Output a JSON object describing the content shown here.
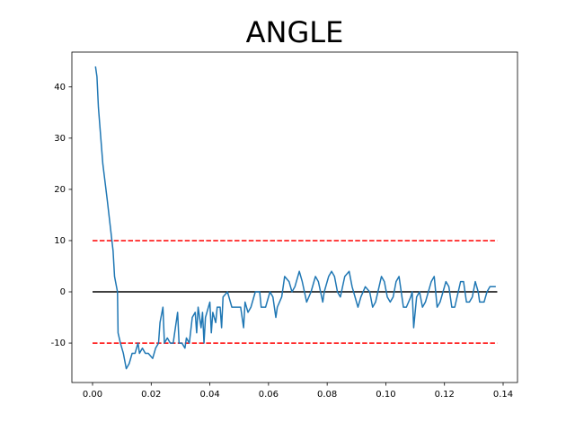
{
  "chart_data": {
    "type": "line",
    "title": "ANGLE",
    "color": "#1f77b4",
    "x": [
      0.001,
      0.0015,
      0.002,
      0.0035,
      0.005,
      0.006,
      0.007,
      0.0075,
      0.0085,
      0.0087,
      0.0095,
      0.0105,
      0.0115,
      0.0125,
      0.0135,
      0.0145,
      0.0155,
      0.016,
      0.017,
      0.018,
      0.019,
      0.0205,
      0.0215,
      0.0225,
      0.023,
      0.024,
      0.0245,
      0.0255,
      0.0265,
      0.0275,
      0.0285,
      0.029,
      0.0295,
      0.0305,
      0.0315,
      0.032,
      0.033,
      0.034,
      0.035,
      0.0355,
      0.036,
      0.037,
      0.0375,
      0.038,
      0.0385,
      0.039,
      0.04,
      0.0405,
      0.041,
      0.042,
      0.0425,
      0.0435,
      0.044,
      0.0445,
      0.046,
      0.0475,
      0.049,
      0.0505,
      0.0515,
      0.052,
      0.053,
      0.054,
      0.0555,
      0.057,
      0.0575,
      0.059,
      0.0605,
      0.0615,
      0.0625,
      0.063,
      0.0645,
      0.0655,
      0.067,
      0.068,
      0.069,
      0.0705,
      0.0715,
      0.073,
      0.0745,
      0.076,
      0.077,
      0.0785,
      0.079,
      0.0805,
      0.0815,
      0.0825,
      0.0835,
      0.0845,
      0.086,
      0.0875,
      0.0885,
      0.0905,
      0.0915,
      0.093,
      0.0945,
      0.0955,
      0.0965,
      0.0985,
      0.0995,
      0.1005,
      0.1015,
      0.1025,
      0.1035,
      0.1045,
      0.106,
      0.107,
      0.1085,
      0.109,
      0.1095,
      0.1105,
      0.1115,
      0.1125,
      0.1135,
      0.1155,
      0.1165,
      0.1175,
      0.1185,
      0.1195,
      0.1205,
      0.1215,
      0.1225,
      0.1235,
      0.1255,
      0.1265,
      0.1275,
      0.1285,
      0.1295,
      0.1305,
      0.1315,
      0.132,
      0.1335,
      0.1345,
      0.1355,
      0.1375
    ],
    "values": [
      44,
      42,
      36,
      25,
      18,
      13,
      8,
      3,
      0,
      -8,
      -10,
      -12,
      -15,
      -14,
      -12,
      -12,
      -10,
      -12,
      -11,
      -12,
      -12,
      -13,
      -11,
      -10,
      -6,
      -3,
      -10,
      -9,
      -10,
      -10,
      -6,
      -4,
      -10,
      -10,
      -11,
      -9,
      -10,
      -5,
      -4,
      -8,
      -3,
      -7,
      -4,
      -10,
      -5,
      -4,
      -2,
      -8,
      -4,
      -6,
      -3,
      -3,
      -7,
      -1,
      0,
      -3,
      -3,
      -3,
      -7,
      -2,
      -4,
      -3,
      0,
      0,
      -3,
      -3,
      0,
      -1,
      -5,
      -3,
      -1,
      3,
      2,
      0,
      1,
      4,
      2,
      -2,
      0,
      3,
      2,
      -2,
      0,
      3,
      4,
      3,
      0,
      -1,
      3,
      4,
      1,
      -3,
      -1,
      1,
      0,
      -3,
      -2,
      3,
      2,
      -1,
      -2,
      -1,
      2,
      3,
      -3,
      -3,
      -1,
      0,
      -7,
      -1,
      0,
      -3,
      -2,
      2,
      3,
      -3,
      -2,
      0,
      2,
      1,
      -3,
      -3,
      2,
      2,
      -2,
      -2,
      -1,
      2,
      0,
      -2,
      -2,
      0,
      1,
      1
    ],
    "hlines": [
      {
        "y": 0,
        "color": "#000000",
        "dashed": false,
        "x_range": [
          0,
          0.138
        ]
      },
      {
        "y": 10,
        "color": "#ff0000",
        "dashed": true,
        "x_range": [
          0,
          0.138
        ]
      },
      {
        "y": -10,
        "color": "#ff0000",
        "dashed": true,
        "x_range": [
          0,
          0.138
        ]
      }
    ],
    "xlim": [
      -0.00705,
      0.1449
    ],
    "ylim": [
      -17.7,
      46.8
    ],
    "xticks": [
      {
        "value": 0,
        "label": "0.00"
      },
      {
        "value": 0.02,
        "label": "0.02"
      },
      {
        "value": 0.04,
        "label": "0.04"
      },
      {
        "value": 0.06,
        "label": "0.06"
      },
      {
        "value": 0.08,
        "label": "0.08"
      },
      {
        "value": 0.1,
        "label": "0.10"
      },
      {
        "value": 0.12,
        "label": "0.12"
      },
      {
        "value": 0.14,
        "label": "0.14"
      }
    ],
    "yticks": [
      -10,
      0,
      10,
      20,
      30,
      40
    ],
    "grid": false
  }
}
